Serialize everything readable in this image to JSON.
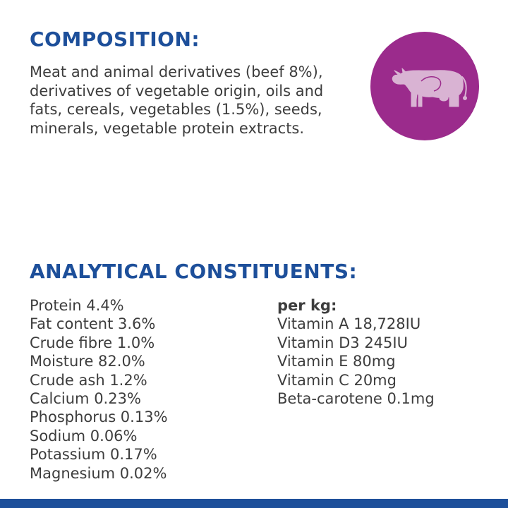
{
  "composition": {
    "heading": "COMPOSITION:",
    "text": "Meat and animal derivatives (beef 8%), derivatives of vegetable origin, oils and fats, cereals, vegetables (1.5%), seeds, minerals, vegetable protein extracts."
  },
  "badge": {
    "icon": "cow-icon",
    "color": "#9b2b8c"
  },
  "analytical": {
    "heading": "ANALYTICAL CONSTITUENTS:",
    "left_items": [
      "Protein 4.4%",
      "Fat content 3.6%",
      "Crude fibre 1.0%",
      "Moisture 82.0%",
      "Crude ash 1.2%",
      "Calcium 0.23%",
      "Phosphorus 0.13%",
      "Sodium 0.06%",
      "Potassium 0.17%",
      "Magnesium 0.02%"
    ],
    "per_kg_label": "per kg:",
    "right_items": [
      "Vitamin A 18,728IU",
      "Vitamin D3 245IU",
      "Vitamin E 80mg",
      "Vitamin C 20mg",
      "Beta-carotene 0.1mg"
    ]
  },
  "colors": {
    "heading": "#1d4f9a",
    "text": "#3d3d3d",
    "bar": "#1d4f9a"
  }
}
